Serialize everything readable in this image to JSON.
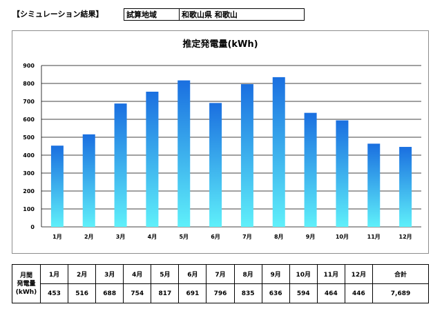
{
  "header": {
    "section_label": "【シミュレーション結果】",
    "area_label": "試算地域",
    "area_value": "和歌山県 和歌山"
  },
  "table": {
    "row_head_lines": [
      "月間",
      "発電量",
      "(kWh)"
    ],
    "months": [
      "1月",
      "2月",
      "3月",
      "4月",
      "5月",
      "6月",
      "7月",
      "8月",
      "9月",
      "10月",
      "11月",
      "12月"
    ],
    "values": [
      "453",
      "516",
      "688",
      "754",
      "817",
      "691",
      "796",
      "835",
      "636",
      "594",
      "464",
      "446"
    ],
    "total_label": "合計",
    "total_value": "7,689"
  },
  "colors": {
    "bar_top": "#1a6fe0",
    "bar_bottom": "#5ff0fa",
    "grid": "#000000",
    "frame": "#8c8c8c"
  },
  "chart_data": {
    "type": "bar",
    "title": "推定発電量(kWh)",
    "categories": [
      "1月",
      "2月",
      "3月",
      "4月",
      "5月",
      "6月",
      "7月",
      "8月",
      "9月",
      "10月",
      "11月",
      "12月"
    ],
    "values": [
      453,
      516,
      688,
      754,
      817,
      691,
      796,
      835,
      636,
      594,
      464,
      446
    ],
    "ylim": [
      0,
      900
    ],
    "yticks": [
      0,
      100,
      200,
      300,
      400,
      500,
      600,
      700,
      800,
      900
    ],
    "xlabel": "",
    "ylabel": "",
    "grid": true,
    "legend": "none"
  }
}
